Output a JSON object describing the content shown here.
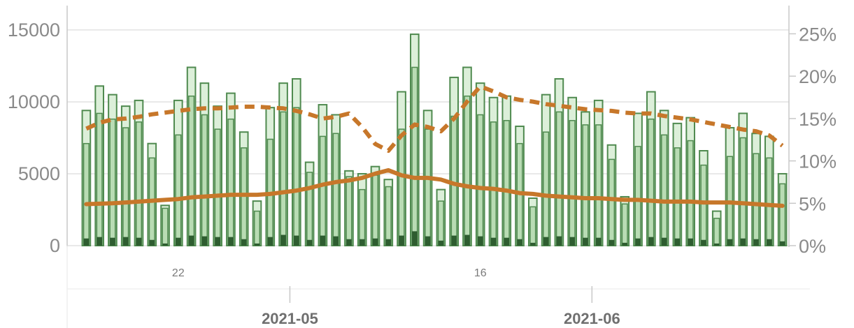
{
  "chart_data": {
    "type": "bar",
    "left_axis": {
      "ticks": [
        "0",
        "5000",
        "10000",
        "15000"
      ],
      "ylim": [
        0,
        16500
      ]
    },
    "right_axis": {
      "ticks": [
        "0%",
        "5%",
        "10%",
        "15%",
        "20%",
        "25%"
      ],
      "ylim": [
        0,
        0.28
      ]
    },
    "x_day_ticks": [
      {
        "label": "22",
        "index": 7
      },
      {
        "label": "16",
        "index": 30
      }
    ],
    "x_month_ticks": [
      {
        "label": "2021-05",
        "index": 16
      },
      {
        "label": "2021-06",
        "index": 39
      }
    ],
    "series": [
      {
        "kind": "bar-total",
        "values": [
          9400,
          11100,
          10500,
          9700,
          10100,
          7100,
          2800,
          10100,
          12400,
          11300,
          9700,
          10600,
          7900,
          3100,
          9600,
          11300,
          11600,
          5800,
          9800,
          9100,
          5200,
          5000,
          5500,
          4600,
          10700,
          14700,
          9400,
          3900,
          11700,
          12400,
          11300,
          10300,
          10400,
          8300,
          3300,
          10500,
          11600,
          10300,
          9300,
          10100,
          7000,
          3400,
          9200,
          10700,
          9400,
          8500,
          8900,
          6600,
          2400,
          8200,
          9200,
          7800,
          7600,
          5000
        ]
      },
      {
        "kind": "bar-inner",
        "values": [
          7100,
          9200,
          8800,
          8200,
          8600,
          6100,
          2600,
          7700,
          10400,
          9100,
          8100,
          8800,
          6800,
          2400,
          7400,
          9300,
          9600,
          5100,
          7600,
          7800,
          4800,
          3900,
          4900,
          4100,
          8100,
          12400,
          8100,
          3100,
          9000,
          10400,
          9100,
          8600,
          8700,
          7100,
          2700,
          7900,
          9300,
          8700,
          8400,
          8400,
          6000,
          2900,
          6900,
          8800,
          7700,
          6800,
          7300,
          5600,
          1900,
          6200,
          7500,
          6400,
          6100,
          4300
        ]
      },
      {
        "kind": "bar-dark",
        "values": [
          500,
          600,
          550,
          600,
          550,
          400,
          150,
          550,
          700,
          650,
          600,
          600,
          450,
          150,
          600,
          750,
          700,
          400,
          700,
          650,
          450,
          450,
          500,
          450,
          700,
          1000,
          650,
          350,
          700,
          750,
          650,
          550,
          550,
          450,
          200,
          600,
          650,
          600,
          550,
          550,
          400,
          200,
          500,
          600,
          550,
          500,
          500,
          400,
          150,
          450,
          500,
          450,
          450,
          300
        ]
      },
      {
        "kind": "line-dashed",
        "axis": "right",
        "values": [
          0.138,
          0.145,
          0.149,
          0.15,
          0.152,
          0.155,
          0.157,
          0.159,
          0.161,
          0.162,
          0.162,
          0.163,
          0.164,
          0.164,
          0.163,
          0.162,
          0.159,
          0.155,
          0.15,
          0.152,
          0.156,
          0.14,
          0.12,
          0.112,
          0.13,
          0.143,
          0.14,
          0.135,
          0.15,
          0.17,
          0.188,
          0.182,
          0.175,
          0.172,
          0.17,
          0.167,
          0.165,
          0.163,
          0.161,
          0.16,
          0.159,
          0.157,
          0.156,
          0.156,
          0.153,
          0.151,
          0.149,
          0.146,
          0.143,
          0.14,
          0.137,
          0.135,
          0.13,
          0.118
        ]
      },
      {
        "kind": "line-solid",
        "axis": "right",
        "values": [
          0.049,
          0.0495,
          0.05,
          0.051,
          0.052,
          0.053,
          0.054,
          0.055,
          0.057,
          0.058,
          0.059,
          0.06,
          0.06,
          0.06,
          0.061,
          0.063,
          0.065,
          0.068,
          0.072,
          0.075,
          0.077,
          0.08,
          0.085,
          0.089,
          0.083,
          0.08,
          0.08,
          0.078,
          0.073,
          0.07,
          0.068,
          0.067,
          0.065,
          0.062,
          0.061,
          0.059,
          0.058,
          0.057,
          0.056,
          0.056,
          0.055,
          0.054,
          0.054,
          0.053,
          0.052,
          0.052,
          0.052,
          0.051,
          0.051,
          0.051,
          0.05,
          0.049,
          0.048,
          0.047
        ]
      }
    ],
    "colors": {
      "bar_fill_light": "#dcefd9",
      "bar_fill_mid": "#b9dcb4",
      "bar_stroke": "#4f8a4f",
      "bar_dark": "#2e5d30",
      "line": "#c7772a",
      "grid": "#e2e2e2"
    }
  }
}
